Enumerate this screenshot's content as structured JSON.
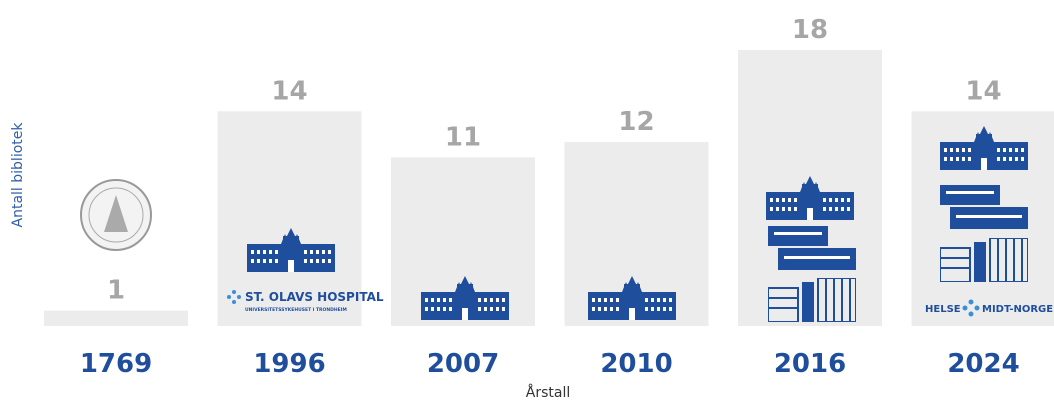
{
  "chart_data": {
    "type": "bar",
    "y_label": "Antall bibliotek",
    "x_label": "Årstall",
    "categories": [
      "1769",
      "1996",
      "2007",
      "2010",
      "2016",
      "2024"
    ],
    "values": [
      1,
      14,
      11,
      12,
      18,
      14
    ],
    "color": "#ececec",
    "ylim": [
      0,
      18
    ],
    "annotations": [
      "ST. OLAVS HOSPITAL",
      "UNIVERSITETSSYKEHUSET I TRONDHEIM",
      "HELSE",
      "MIDT-NORGE"
    ]
  }
}
